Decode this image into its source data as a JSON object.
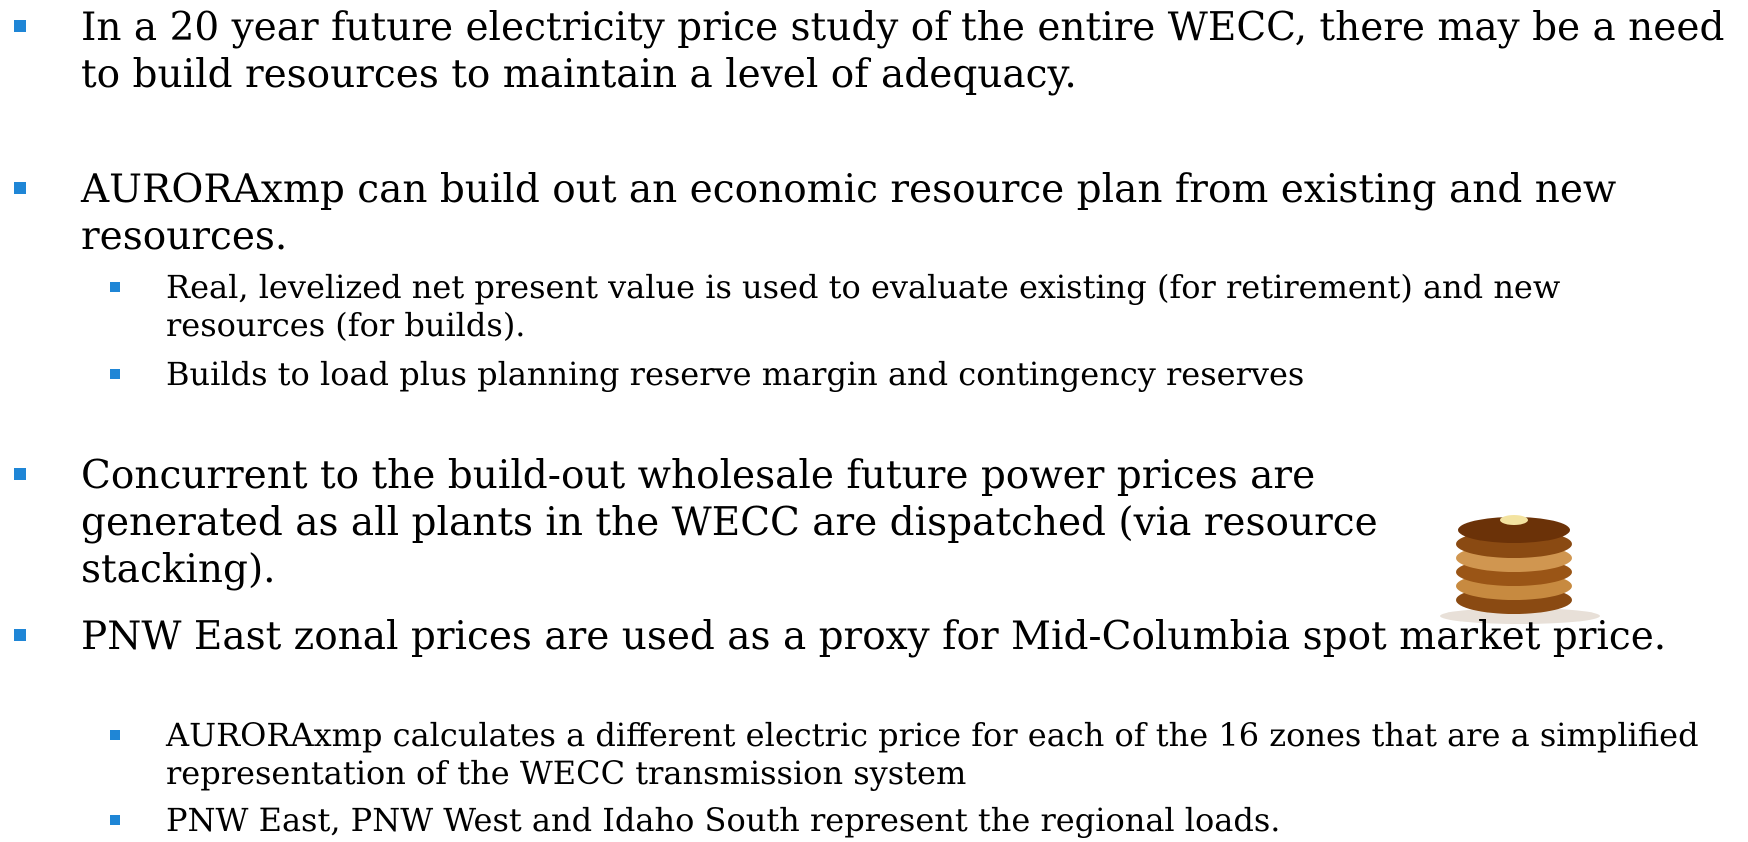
{
  "items": [
    {
      "text": "In a 20 year future electricity price study of the entire WECC, there may be a need to build resources to maintain a level of adequacy.",
      "sub": []
    },
    {
      "text": "AURORAxmp can build out an economic resource plan from existing and new resources.",
      "sub": [
        "Real, levelized net present value is used to evaluate existing (for retirement) and new resources (for builds).",
        "Builds to load plus planning reserve margin and contingency reserves"
      ]
    },
    {
      "text": "Concurrent to the build-out wholesale future power prices are generated as all plants in the WECC are dispatched (via resource stacking).",
      "sub": []
    },
    {
      "text": "PNW East zonal prices are used as a proxy for Mid-Columbia spot market price.",
      "sub": [
        "AURORAxmp calculates a different electric price for each of the 16 zones that are a simplified representation of the WECC transmission system",
        "PNW East, PNW West and Idaho South represent the regional loads."
      ]
    }
  ]
}
